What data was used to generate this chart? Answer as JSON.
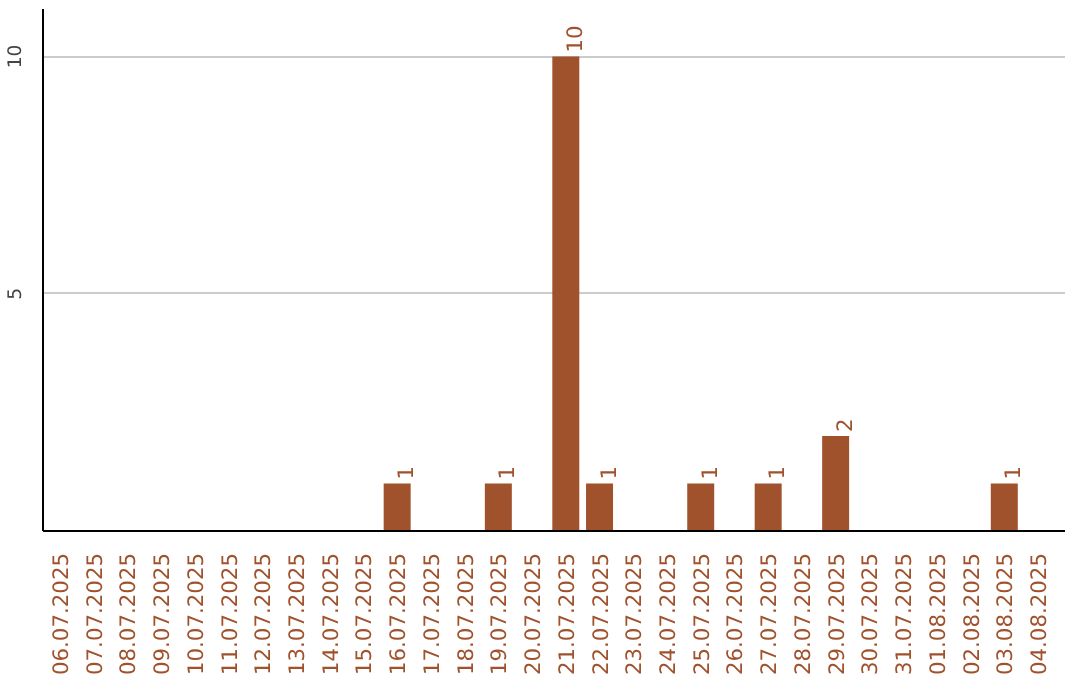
{
  "chart_data": {
    "type": "bar",
    "color": "#a0522d",
    "categories": [
      "06.07.2025",
      "07.07.2025",
      "08.07.2025",
      "09.07.2025",
      "10.07.2025",
      "11.07.2025",
      "12.07.2025",
      "13.07.2025",
      "14.07.2025",
      "15.07.2025",
      "16.07.2025",
      "17.07.2025",
      "18.07.2025",
      "19.07.2025",
      "20.07.2025",
      "21.07.2025",
      "22.07.2025",
      "23.07.2025",
      "24.07.2025",
      "25.07.2025",
      "26.07.2025",
      "27.07.2025",
      "28.07.2025",
      "29.07.2025",
      "30.07.2025",
      "31.07.2025",
      "01.08.2025",
      "02.08.2025",
      "03.08.2025",
      "04.08.2025"
    ],
    "values": [
      0,
      0,
      0,
      0,
      0,
      0,
      0,
      0,
      0,
      0,
      1,
      0,
      0,
      1,
      0,
      10,
      1,
      0,
      0,
      1,
      0,
      1,
      0,
      2,
      0,
      0,
      0,
      0,
      1,
      0
    ],
    "value_labels": [
      null,
      null,
      null,
      null,
      null,
      null,
      null,
      null,
      null,
      null,
      "1",
      null,
      null,
      "1",
      null,
      "10",
      "1",
      null,
      null,
      "1",
      null,
      "1",
      null,
      "2",
      null,
      null,
      null,
      null,
      "1",
      null
    ],
    "ylim": [
      0,
      11
    ],
    "yticks": [
      {
        "value": 0,
        "label": null
      },
      5,
      10
    ],
    "grid": "y"
  }
}
